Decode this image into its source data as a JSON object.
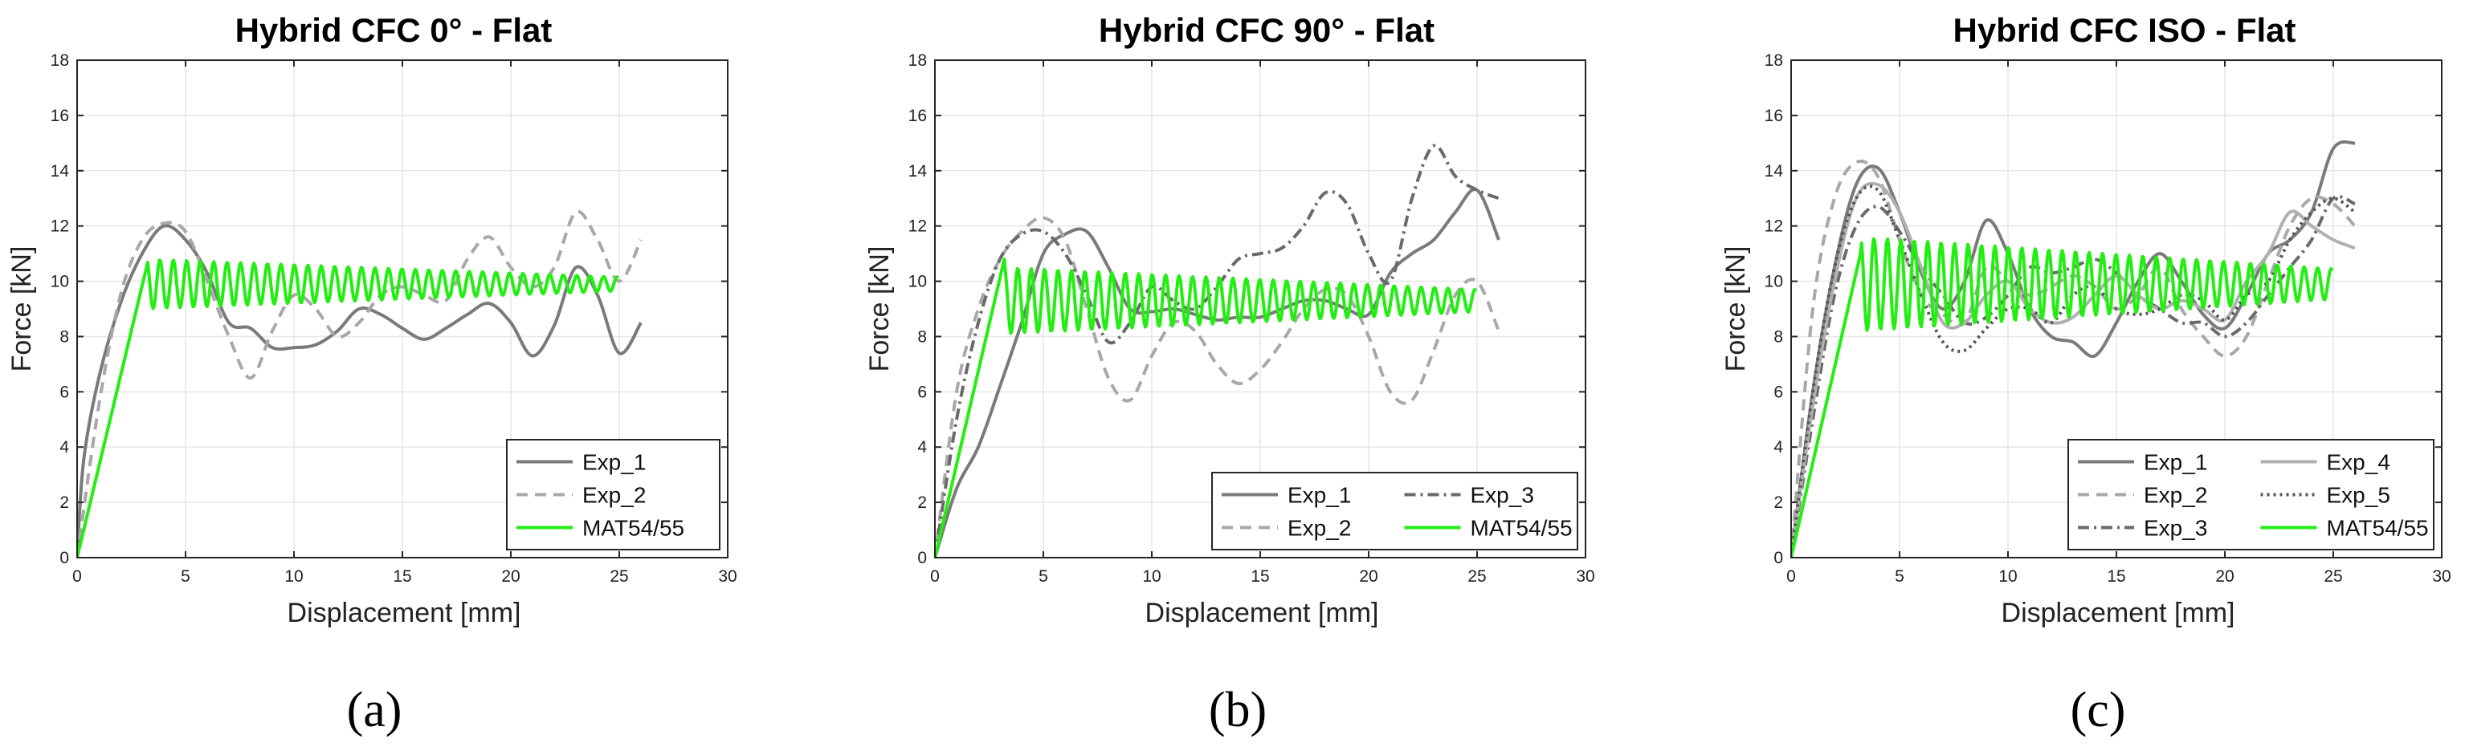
{
  "chart_data": [
    {
      "type": "line",
      "panel": "a",
      "caption": "(a)",
      "title": "Hybrid CFC 0° - Flat",
      "xlabel": "Displacement [mm]",
      "ylabel": "Force [kN]",
      "xlim": [
        0,
        30
      ],
      "ylim": [
        0,
        18
      ],
      "xticks": [
        0,
        5,
        10,
        15,
        20,
        25,
        30
      ],
      "yticks": [
        0,
        2,
        4,
        6,
        8,
        10,
        12,
        14,
        16,
        18
      ],
      "grid": true,
      "legend_position": "bottom-right",
      "legend_columns": 1,
      "series": [
        {
          "name": "Exp_1",
          "color": "#7a7a7a",
          "dash": "solid",
          "x": [
            0,
            0.3,
            1,
            2,
            3,
            4,
            5,
            6,
            7,
            8,
            9,
            10,
            11,
            12,
            13,
            14,
            15,
            16,
            17,
            18,
            19,
            20,
            21,
            22,
            23,
            24,
            25,
            26
          ],
          "y": [
            0,
            3.5,
            6.5,
            9.2,
            11.0,
            12.0,
            11.5,
            10.3,
            8.5,
            8.3,
            7.6,
            7.6,
            7.7,
            8.2,
            9.0,
            8.8,
            8.3,
            7.9,
            8.3,
            8.8,
            9.2,
            8.5,
            7.3,
            8.4,
            10.5,
            9.5,
            7.4,
            8.5
          ]
        },
        {
          "name": "Exp_2",
          "color": "#a8a8a8",
          "dash": "dashed",
          "x": [
            0,
            1,
            2,
            3,
            4,
            5,
            6,
            7,
            8,
            9,
            10,
            11,
            12,
            13,
            14,
            15,
            16,
            17,
            18,
            19,
            20,
            21,
            22,
            23,
            24,
            25,
            26
          ],
          "y": [
            0,
            5.5,
            9.5,
            11.5,
            12.1,
            11.8,
            10.0,
            8.0,
            6.5,
            8.2,
            9.5,
            9.0,
            8.0,
            8.5,
            9.5,
            9.8,
            9.5,
            9.3,
            10.8,
            11.6,
            10.5,
            9.8,
            10.5,
            12.5,
            11.5,
            10.0,
            11.5
          ]
        },
        {
          "name": "MAT54/55",
          "color": "#22ee11",
          "dash": "solid",
          "oscillating": true,
          "peak": [
            3.2,
            10.5
          ],
          "end_x": 25,
          "mean": 9.9,
          "amp_start": 0.9,
          "amp_end": 0.25,
          "period": 0.62
        }
      ]
    },
    {
      "type": "line",
      "panel": "b",
      "caption": "(b)",
      "title": "Hybrid CFC 90° - Flat",
      "xlabel": "Displacement [mm]",
      "ylabel": "Force [kN]",
      "xlim": [
        0,
        30
      ],
      "ylim": [
        0,
        18
      ],
      "xticks": [
        0,
        5,
        10,
        15,
        20,
        25,
        30
      ],
      "yticks": [
        0,
        2,
        4,
        6,
        8,
        10,
        12,
        14,
        16,
        18
      ],
      "grid": true,
      "legend_position": "bottom-right",
      "legend_columns": 2,
      "series": [
        {
          "name": "Exp_1",
          "color": "#7a7a7a",
          "dash": "solid",
          "x": [
            0,
            1,
            2,
            3,
            4,
            5,
            6,
            7,
            8,
            9,
            10,
            11,
            12,
            13,
            14,
            15,
            16,
            17,
            18,
            19,
            20,
            21,
            22,
            23,
            24,
            25,
            26
          ],
          "y": [
            0,
            2.5,
            4.0,
            6.2,
            8.5,
            11.0,
            11.7,
            11.8,
            10.5,
            9.0,
            8.9,
            9.0,
            8.8,
            8.6,
            8.7,
            8.7,
            9.0,
            9.3,
            9.3,
            9.0,
            8.8,
            10.3,
            11.0,
            11.5,
            12.5,
            13.3,
            11.5
          ]
        },
        {
          "name": "Exp_2",
          "color": "#a8a8a8",
          "dash": "dashed",
          "x": [
            0,
            1,
            2,
            3,
            4,
            5,
            6,
            7,
            8,
            9,
            10,
            11,
            12,
            13,
            14,
            15,
            16,
            17,
            18,
            19,
            20,
            21,
            22,
            23,
            24,
            25,
            26
          ],
          "y": [
            0,
            6.0,
            9.0,
            10.8,
            11.8,
            12.3,
            11.5,
            9.0,
            6.5,
            5.7,
            7.3,
            8.5,
            8.2,
            7.0,
            6.3,
            6.8,
            7.8,
            9.0,
            9.7,
            9.5,
            8.0,
            6.0,
            5.7,
            7.5,
            9.5,
            10.0,
            8.2
          ]
        },
        {
          "name": "Exp_3",
          "color": "#6a6a6a",
          "dash": "dashdot",
          "x": [
            0,
            1,
            2,
            3,
            4,
            5,
            6,
            7,
            8,
            9,
            10,
            11,
            12,
            13,
            14,
            15,
            16,
            17,
            18,
            19,
            20,
            21,
            22,
            23,
            24,
            25,
            26
          ],
          "y": [
            0,
            5.0,
            8.5,
            10.8,
            11.7,
            11.8,
            11.0,
            9.5,
            7.8,
            8.5,
            9.8,
            9.3,
            9.0,
            9.8,
            10.8,
            11.0,
            11.2,
            12.0,
            13.2,
            12.8,
            11.0,
            10.0,
            13.0,
            14.9,
            13.8,
            13.3,
            13.0
          ]
        },
        {
          "name": "MAT54/55",
          "color": "#22ee11",
          "dash": "solid",
          "oscillating": true,
          "peak": [
            3.2,
            10.8
          ],
          "end_x": 25,
          "mean": 9.3,
          "amp_start": 1.2,
          "amp_end": 0.4,
          "period": 0.62
        }
      ]
    },
    {
      "type": "line",
      "panel": "c",
      "caption": "(c)",
      "title": "Hybrid CFC ISO - Flat",
      "xlabel": "Displacement [mm]",
      "ylabel": "Force [kN]",
      "xlim": [
        0,
        30
      ],
      "ylim": [
        0,
        18
      ],
      "xticks": [
        0,
        5,
        10,
        15,
        20,
        25,
        30
      ],
      "yticks": [
        0,
        2,
        4,
        6,
        8,
        10,
        12,
        14,
        16,
        18
      ],
      "grid": true,
      "legend_position": "bottom-right",
      "legend_columns": 2,
      "series": [
        {
          "name": "Exp_1",
          "color": "#7a7a7a",
          "dash": "solid",
          "x": [
            0,
            1,
            2,
            3,
            4,
            5,
            6,
            7,
            8,
            9,
            10,
            11,
            12,
            13,
            14,
            15,
            16,
            17,
            18,
            19,
            20,
            21,
            22,
            23,
            24,
            25,
            26
          ],
          "y": [
            0,
            6.0,
            10.5,
            13.5,
            14.1,
            12.5,
            10.3,
            9.0,
            10.0,
            12.2,
            11.0,
            9.0,
            8.0,
            7.8,
            7.3,
            8.5,
            10.0,
            11.0,
            10.0,
            8.8,
            8.3,
            9.5,
            11.0,
            11.5,
            12.5,
            14.8,
            15.0
          ]
        },
        {
          "name": "Exp_2",
          "color": "#a8a8a8",
          "dash": "dashed",
          "x": [
            0,
            1,
            2,
            3,
            4,
            5,
            6,
            7,
            8,
            9,
            10,
            11,
            12,
            13,
            14,
            15,
            16,
            17,
            18,
            19,
            20,
            21,
            22,
            23,
            24,
            25,
            26
          ],
          "y": [
            0,
            9.0,
            13.0,
            14.3,
            13.8,
            11.5,
            9.5,
            8.8,
            8.5,
            10.5,
            10.0,
            9.5,
            9.8,
            10.2,
            9.8,
            9.0,
            9.5,
            10.5,
            9.0,
            8.0,
            7.3,
            8.0,
            10.0,
            12.0,
            13.0,
            12.8,
            12.0
          ]
        },
        {
          "name": "Exp_3",
          "color": "#6a6a6a",
          "dash": "dashdot",
          "x": [
            0,
            1,
            2,
            3,
            4,
            5,
            6,
            7,
            8,
            9,
            10,
            11,
            12,
            13,
            14,
            15,
            16,
            17,
            18,
            19,
            20,
            21,
            22,
            23,
            24,
            25,
            26
          ],
          "y": [
            0,
            5.0,
            9.5,
            12.0,
            12.7,
            11.8,
            10.5,
            9.5,
            8.5,
            8.7,
            9.5,
            10.5,
            10.3,
            10.5,
            10.8,
            10.3,
            9.5,
            9.0,
            8.5,
            8.5,
            8.0,
            8.5,
            9.5,
            10.5,
            11.5,
            13.0,
            12.8
          ]
        },
        {
          "name": "Exp_4",
          "color": "#b0b0b0",
          "dash": "solid",
          "x": [
            0,
            1,
            2,
            3,
            4,
            5,
            6,
            7,
            8,
            9,
            10,
            11,
            12,
            13,
            14,
            15,
            16,
            17,
            18,
            19,
            20,
            21,
            22,
            23,
            24,
            25,
            26
          ],
          "y": [
            0,
            5.5,
            10.0,
            13.0,
            13.5,
            12.5,
            10.5,
            8.5,
            8.5,
            9.5,
            10.0,
            9.0,
            8.5,
            8.7,
            9.5,
            10.2,
            9.5,
            9.0,
            9.3,
            9.0,
            8.6,
            10.0,
            11.0,
            12.5,
            12.0,
            11.5,
            11.2
          ]
        },
        {
          "name": "Exp_5",
          "color": "#555555",
          "dash": "dotted",
          "x": [
            0,
            1,
            2,
            3,
            4,
            5,
            6,
            7,
            8,
            9,
            10,
            11,
            12,
            13,
            14,
            15,
            16,
            17,
            18,
            19,
            20,
            21,
            22,
            23,
            24,
            25,
            26
          ],
          "y": [
            0,
            6.0,
            10.5,
            13.0,
            13.3,
            11.5,
            9.5,
            7.8,
            7.5,
            8.3,
            9.0,
            9.0,
            8.5,
            9.5,
            9.8,
            9.0,
            8.8,
            9.0,
            9.5,
            9.3,
            8.6,
            9.5,
            10.0,
            11.5,
            12.5,
            13.0,
            12.5
          ]
        },
        {
          "name": "MAT54/55",
          "color": "#22ee11",
          "dash": "solid",
          "oscillating": true,
          "peak": [
            3.2,
            11.0
          ],
          "end_x": 25,
          "mean": 9.9,
          "amp_start": 1.7,
          "amp_end": 0.55,
          "period": 0.62
        }
      ]
    }
  ]
}
